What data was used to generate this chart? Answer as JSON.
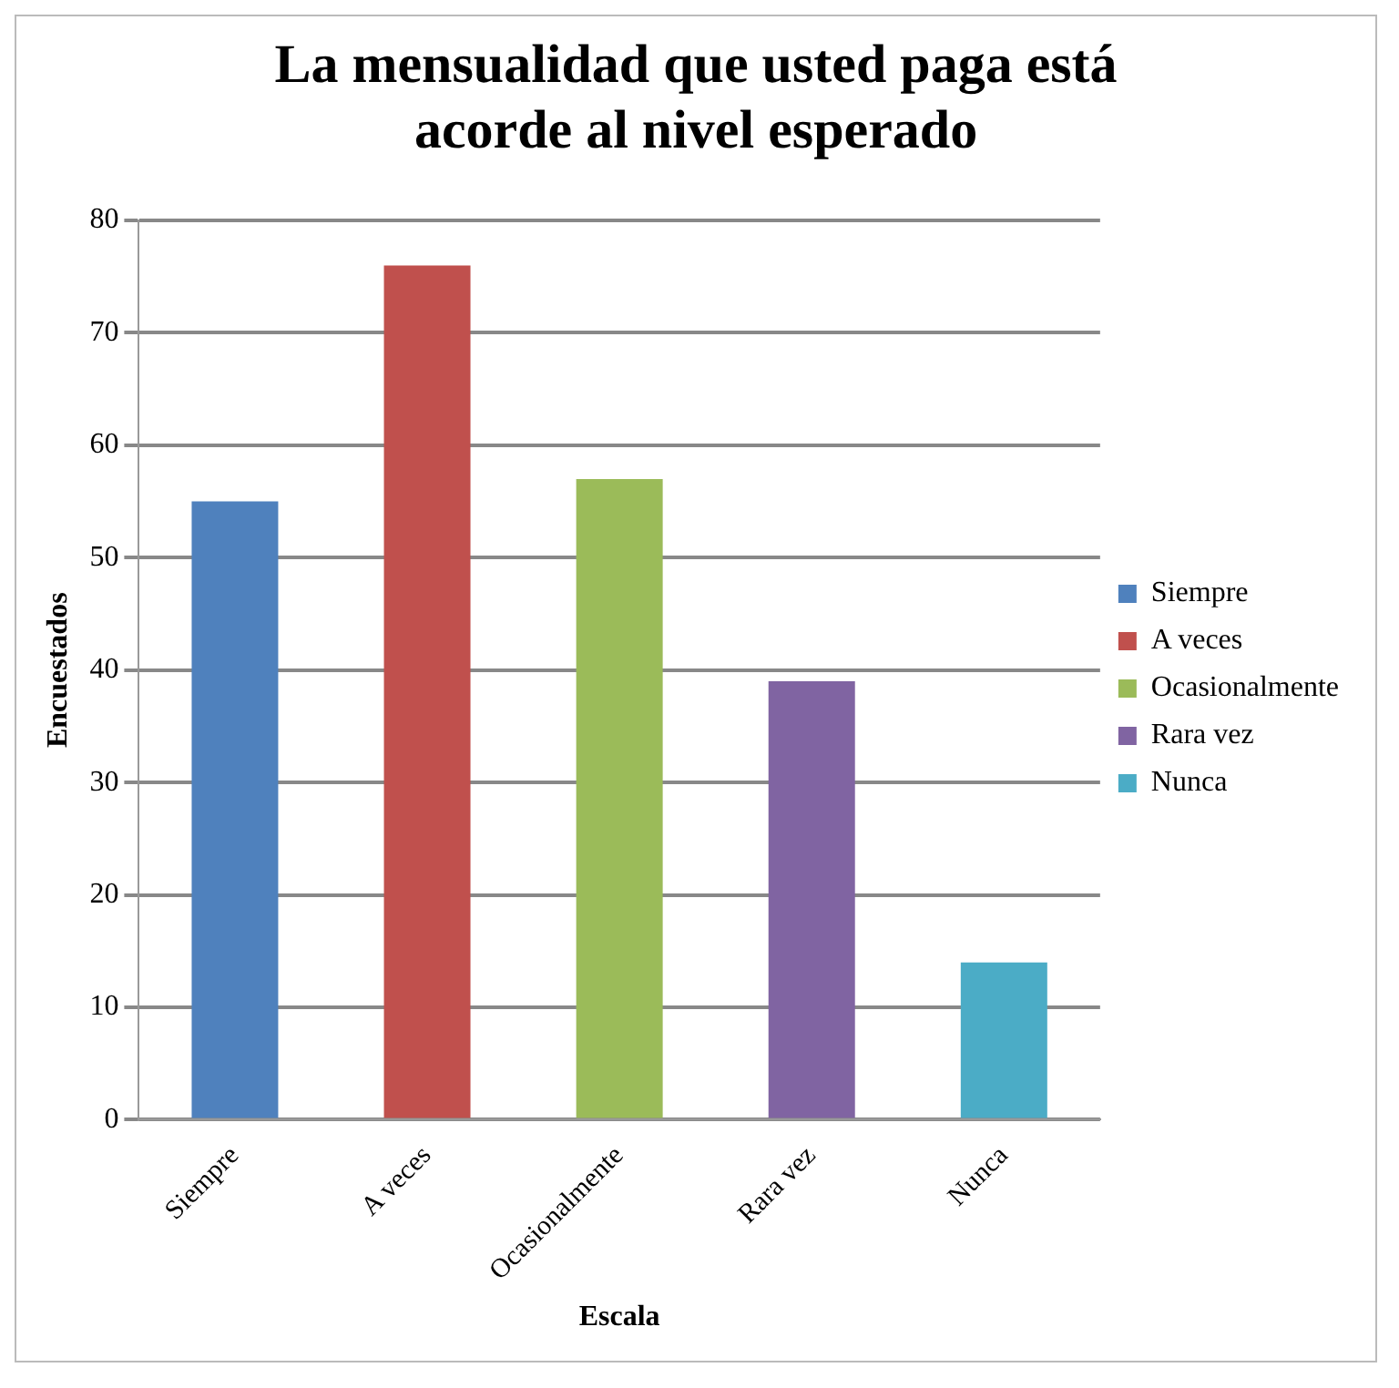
{
  "chart_data": {
    "type": "bar",
    "title": "La mensualidad que usted paga está acorde al nivel esperado",
    "xlabel": "Escala",
    "ylabel": "Encuestados",
    "categories": [
      "Siempre",
      "A veces",
      "Ocasionalmente",
      "Rara vez",
      "Nunca"
    ],
    "series": [
      {
        "name": "Siempre",
        "color": "#4f81bd",
        "values": [
          55,
          null,
          null,
          null,
          null
        ]
      },
      {
        "name": "A veces",
        "color": "#c0504d",
        "values": [
          null,
          76,
          null,
          null,
          null
        ]
      },
      {
        "name": "Ocasionalmente",
        "color": "#9bbb59",
        "values": [
          null,
          null,
          57,
          null,
          null
        ]
      },
      {
        "name": "Rara vez",
        "color": "#8064a2",
        "values": [
          null,
          null,
          null,
          39,
          null
        ]
      },
      {
        "name": "Nunca",
        "color": "#4bacc6",
        "values": [
          null,
          null,
          null,
          null,
          14
        ]
      }
    ],
    "ylim": [
      0,
      80
    ],
    "yticks": [
      0,
      10,
      20,
      30,
      40,
      50,
      60,
      70,
      80
    ],
    "grid": "y",
    "legend": "right"
  }
}
